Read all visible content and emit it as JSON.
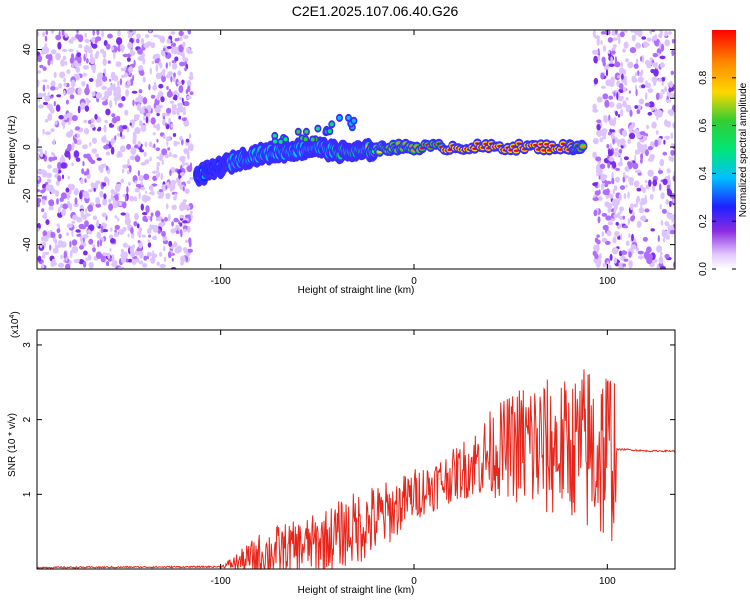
{
  "page": {
    "title": "C2E1.2025.107.06.40.G26"
  },
  "chart_data": [
    {
      "type": "heatmap",
      "title": "C2E1.2025.107.06.40.G26",
      "xlabel": "Height of straight line (km)",
      "ylabel": "Frequency (Hz)",
      "xlim": [
        -195,
        135
      ],
      "ylim": [
        -50,
        48
      ],
      "xticks": [
        -100,
        0,
        100
      ],
      "xtick_labels": [
        "-100",
        "0",
        "100"
      ],
      "yticks": [
        -40,
        -20,
        0,
        20,
        40
      ],
      "ytick_labels": [
        "-40",
        "-20",
        "0",
        "20",
        "40"
      ],
      "colorbar": {
        "label": "Normalized spectral amplitude",
        "range": [
          0,
          1
        ],
        "ticks": [
          0.0,
          0.2,
          0.4,
          0.6,
          0.8
        ],
        "tick_labels": [
          "0.0",
          "0.2",
          "0.4",
          "0.6",
          "0.8"
        ],
        "colormap": "rainbow"
      },
      "noise_regions": [
        {
          "x": [
            -195,
            -115
          ],
          "amplitude": 0.12
        },
        {
          "x": [
            93,
            135
          ],
          "amplitude": 0.12
        }
      ],
      "ridge": [
        {
          "x": -112,
          "y": -12,
          "amplitude": 0.3
        },
        {
          "x": -100,
          "y": -8,
          "amplitude": 0.35
        },
        {
          "x": -90,
          "y": -5,
          "amplitude": 0.4
        },
        {
          "x": -80,
          "y": -3,
          "amplitude": 0.45
        },
        {
          "x": -70,
          "y": -2,
          "amplitude": 0.45
        },
        {
          "x": -60,
          "y": -1,
          "amplitude": 0.5
        },
        {
          "x": -50,
          "y": 0,
          "amplitude": 0.5
        },
        {
          "x": -40,
          "y": -2,
          "amplitude": 0.55
        },
        {
          "x": -30,
          "y": -2,
          "amplitude": 0.6
        },
        {
          "x": -20,
          "y": -1,
          "amplitude": 0.7
        },
        {
          "x": -10,
          "y": 0,
          "amplitude": 0.8
        },
        {
          "x": 0,
          "y": 0,
          "amplitude": 0.85
        },
        {
          "x": 20,
          "y": 0,
          "amplitude": 0.9
        },
        {
          "x": 40,
          "y": 0,
          "amplitude": 0.9
        },
        {
          "x": 60,
          "y": 0,
          "amplitude": 0.9
        },
        {
          "x": 80,
          "y": 0,
          "amplitude": 0.9
        },
        {
          "x": 88,
          "y": 0,
          "amplitude": 0.85
        }
      ],
      "upper_branch": [
        {
          "x": -70,
          "y": 3,
          "amplitude": 0.5
        },
        {
          "x": -55,
          "y": 5,
          "amplitude": 0.55
        },
        {
          "x": -45,
          "y": 8,
          "amplitude": 0.5
        },
        {
          "x": -35,
          "y": 10,
          "amplitude": 0.3
        }
      ]
    },
    {
      "type": "line",
      "xlabel": "Height of straight line (km)",
      "ylabel": "SNR (10 * v/v)",
      "y_multiplier_label": "(x10",
      "y_multiplier_exp": "4",
      "y_multiplier_close": ")",
      "xlim": [
        -195,
        135
      ],
      "ylim": [
        0,
        3.2
      ],
      "xticks": [
        -100,
        0,
        100
      ],
      "xtick_labels": [
        "-100",
        "0",
        "100"
      ],
      "yticks": [
        1,
        2,
        3
      ],
      "ytick_labels": [
        "1",
        "2",
        "3"
      ],
      "color": "#e8251a",
      "series": [
        {
          "x": [
            -195,
            -100,
            -90,
            -80,
            -70,
            -60,
            -50,
            -40,
            -30,
            -20,
            -10,
            0,
            10,
            20,
            30,
            40,
            50,
            60,
            70,
            80,
            90,
            100,
            104,
            105,
            110,
            120,
            135
          ],
          "y": [
            0.02,
            0.03,
            0.1,
            0.18,
            0.25,
            0.3,
            0.35,
            0.45,
            0.55,
            0.65,
            0.8,
            1.0,
            1.12,
            1.25,
            1.4,
            1.55,
            1.65,
            1.65,
            1.6,
            1.65,
            1.6,
            1.55,
            1.6,
            1.6,
            1.6,
            1.58,
            1.58
          ],
          "envelope": [
            0.0,
            0.0,
            0.15,
            0.3,
            0.35,
            0.35,
            0.4,
            0.45,
            0.5,
            0.5,
            0.4,
            0.35,
            0.35,
            0.35,
            0.45,
            0.6,
            0.7,
            1.0,
            0.95,
            0.9,
            1.2,
            1.3,
            1.2,
            0.0,
            0.0,
            0.0,
            0.0
          ]
        }
      ]
    }
  ]
}
